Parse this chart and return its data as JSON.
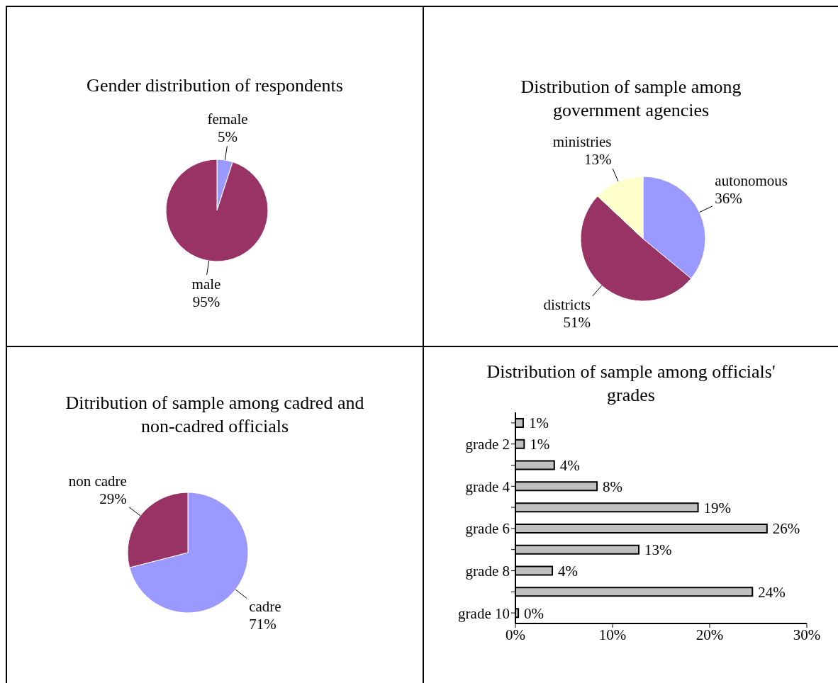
{
  "chart_data": [
    {
      "type": "pie",
      "title": "Gender distribution of respondents",
      "categories": [
        "female",
        "male"
      ],
      "values": [
        5,
        95
      ],
      "value_labels": [
        "5%",
        "95%"
      ],
      "colors": [
        "#9999ff",
        "#993366"
      ]
    },
    {
      "type": "pie",
      "title": "Distribution of sample among government agencies",
      "categories": [
        "autonomous",
        "districts",
        "ministries"
      ],
      "values": [
        36,
        51,
        13
      ],
      "value_labels": [
        "36%",
        "51%",
        "13%"
      ],
      "colors": [
        "#9999ff",
        "#993366",
        "#ffffcc"
      ]
    },
    {
      "type": "pie",
      "title": "Ditribution of sample among cadred and non-cadred officials",
      "categories": [
        "cadre",
        "non cadre"
      ],
      "values": [
        71,
        29
      ],
      "value_labels": [
        "71%",
        "29%"
      ],
      "colors": [
        "#9999ff",
        "#993366"
      ]
    },
    {
      "type": "bar",
      "orientation": "horizontal",
      "title": "Distribution of sample among officials' grades",
      "categories": [
        null,
        "grade 2",
        null,
        "grade 4",
        null,
        "grade 6",
        null,
        "grade 8",
        null,
        "grade 10"
      ],
      "values": [
        0.8,
        0.9,
        4,
        8.4,
        18.8,
        25.9,
        12.7,
        3.8,
        24.4,
        0.3
      ],
      "value_labels": [
        "1%",
        "1%",
        "4%",
        "8%",
        "19%",
        "26%",
        "13%",
        "4%",
        "24%",
        "0%"
      ],
      "color": "#c0c0c0",
      "xlim": [
        0,
        30
      ],
      "xticks": [
        {
          "value": 0,
          "label": "0%"
        },
        {
          "value": 10,
          "label": "10%"
        },
        {
          "value": 20,
          "label": "20%"
        },
        {
          "value": 30,
          "label": "30%"
        }
      ]
    }
  ]
}
